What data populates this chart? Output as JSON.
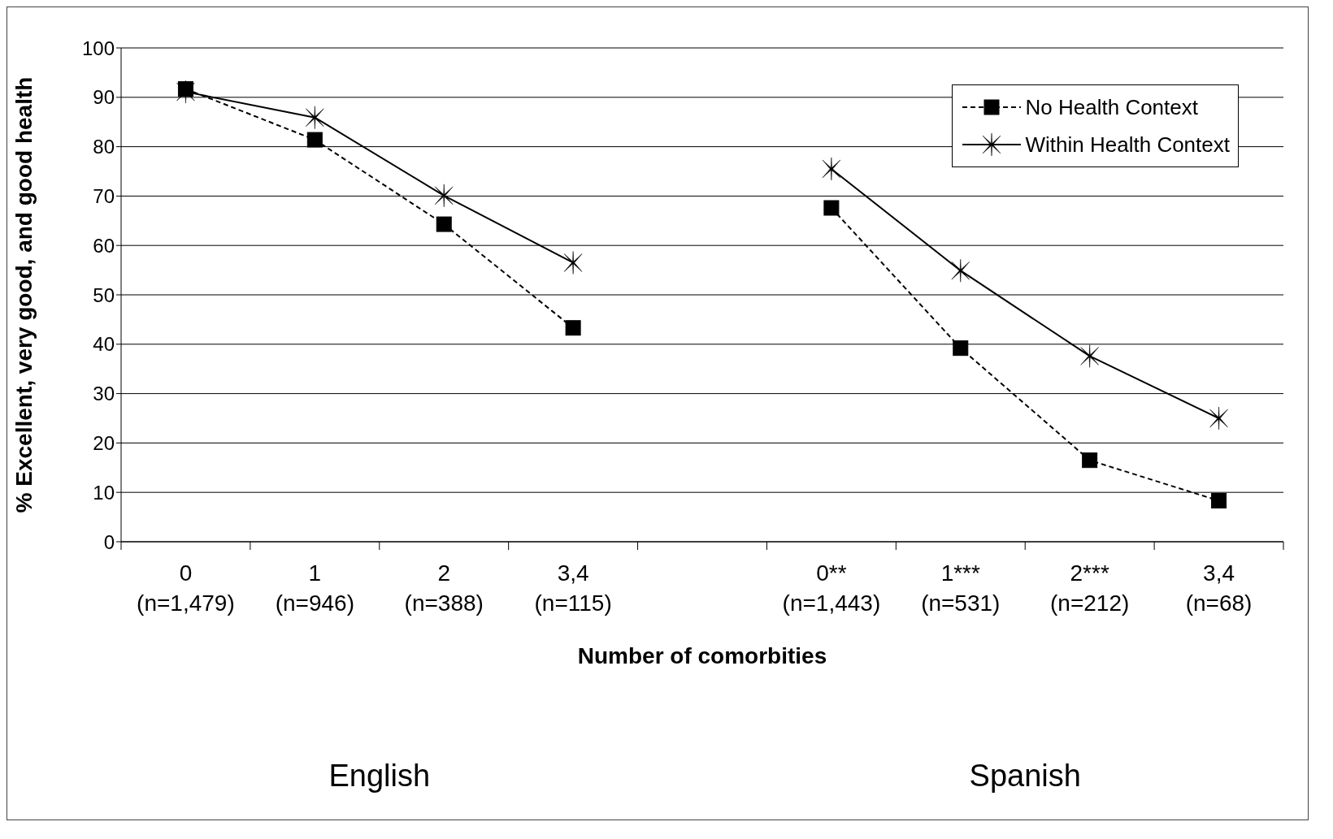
{
  "chart_data": {
    "type": "line",
    "xlabel": "Number of comorbities",
    "ylabel": "% Excellent, very good, and good health",
    "categories": [
      "0\n(n=1,479)",
      "1\n(n=946)",
      "2\n(n=388)",
      "3,4\n(n=115)",
      null,
      "0**\n(n=1,443)",
      "1***\n(n=531)",
      "2***\n(n=212)",
      "3,4\n(n=68)"
    ],
    "series": [
      {
        "name": "No Health Context",
        "color": "#000000",
        "marker": "square",
        "line_style": "dashed",
        "values": [
          91.7,
          81.4,
          64.3,
          43.3,
          null,
          67.6,
          39.2,
          16.5,
          8.3
        ]
      },
      {
        "name": "Within Health Context",
        "color": "#000000",
        "marker": "cross",
        "line_style": "solid",
        "values": [
          91.1,
          85.9,
          70.1,
          56.5,
          null,
          75.5,
          54.9,
          37.6,
          25.0
        ]
      }
    ],
    "ylim": [
      0,
      100
    ],
    "yticks": [
      0,
      10,
      20,
      30,
      40,
      50,
      60,
      70,
      80,
      90,
      100
    ],
    "grid": "y",
    "legend": "top right",
    "annotations": [
      "English",
      "Spanish"
    ]
  }
}
